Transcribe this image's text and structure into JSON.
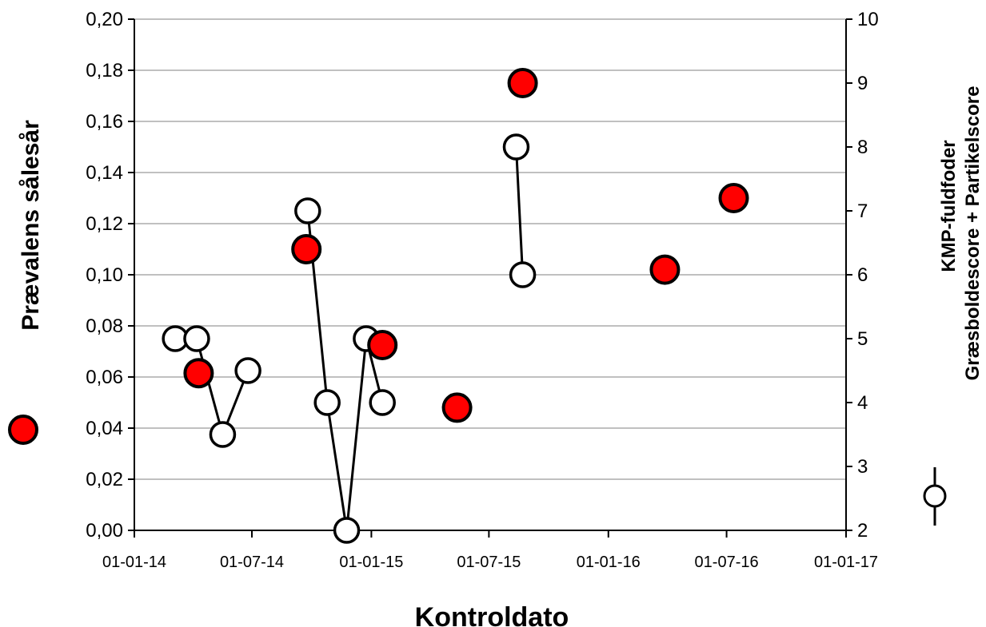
{
  "chart_data": {
    "type": "scatter",
    "xlabel": "Kontroldato",
    "ylabel_left": "Prævalens sålesår",
    "ylabel_right_line1": "KMP-fuldfoder",
    "ylabel_right_line2": "Græsboldescore + Partikelscore",
    "x_range": [
      "2014-01-01",
      "2017-01-01"
    ],
    "x_tick_labels": [
      "01-01-14",
      "01-07-14",
      "01-01-15",
      "01-07-15",
      "01-01-16",
      "01-07-16",
      "01-01-17"
    ],
    "x_tick_dates": [
      "2014-01-01",
      "2014-07-01",
      "2015-01-01",
      "2015-07-01",
      "2016-01-01",
      "2016-07-01",
      "2017-01-01"
    ],
    "y_left": {
      "range": [
        0,
        0.2
      ],
      "tick_labels": [
        "0,00",
        "0,02",
        "0,04",
        "0,06",
        "0,08",
        "0,10",
        "0,12",
        "0,14",
        "0,16",
        "0,18",
        "0,20"
      ],
      "tick_values": [
        0,
        0.02,
        0.04,
        0.06,
        0.08,
        0.1,
        0.12,
        0.14,
        0.16,
        0.18,
        0.2
      ]
    },
    "y_right": {
      "range": [
        2,
        10
      ],
      "tick_labels": [
        "2",
        "3",
        "4",
        "5",
        "6",
        "7",
        "8",
        "9",
        "10"
      ],
      "tick_values": [
        2,
        3,
        4,
        5,
        6,
        7,
        8,
        9,
        10
      ]
    },
    "grid": true,
    "series": [
      {
        "axis": "left",
        "style": "filled-circle",
        "color": "#ff0000",
        "points": [
          {
            "x": "2014-04-10",
            "y": 0.0615
          },
          {
            "x": "2014-09-23",
            "y": 0.11
          },
          {
            "x": "2015-01-18",
            "y": 0.0725
          },
          {
            "x": "2015-05-13",
            "y": 0.048
          },
          {
            "x": "2015-08-22",
            "y": 0.175
          },
          {
            "x": "2016-03-28",
            "y": 0.102
          },
          {
            "x": "2016-07-12",
            "y": 0.13
          }
        ]
      },
      {
        "axis": "right",
        "style": "open-circle-line",
        "color": "#000000",
        "segments": [
          [
            {
              "x": "2014-03-05",
              "y": 5.0
            }
          ],
          [
            {
              "x": "2014-04-07",
              "y": 5.0
            },
            {
              "x": "2014-05-17",
              "y": 3.5
            },
            {
              "x": "2014-06-25",
              "y": 4.5
            }
          ],
          [
            {
              "x": "2014-09-25",
              "y": 7.0
            },
            {
              "x": "2014-10-25",
              "y": 4.0
            },
            {
              "x": "2014-11-24",
              "y": 2.0
            },
            {
              "x": "2014-12-24",
              "y": 5.0
            },
            {
              "x": "2015-01-18",
              "y": 4.0
            }
          ],
          [
            {
              "x": "2015-08-12",
              "y": 8.0
            },
            {
              "x": "2015-08-22",
              "y": 6.0
            }
          ]
        ]
      }
    ]
  },
  "legend": {
    "left_marker": "red-filled-circle",
    "right_marker": "open-circle-with-line"
  }
}
